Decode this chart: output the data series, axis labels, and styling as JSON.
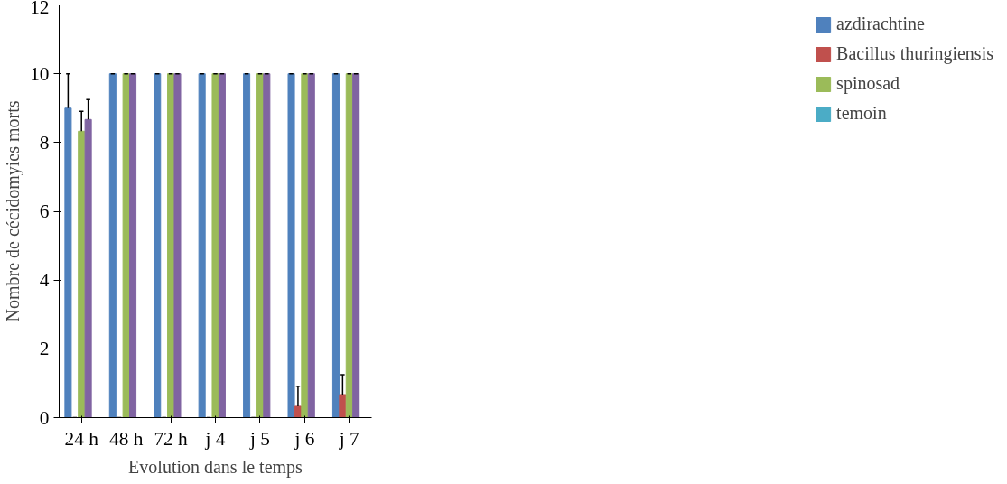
{
  "chart_data": {
    "type": "bar",
    "xlabel": "Evolution dans le temps",
    "ylabel": "Nombre de cécidomyies morts",
    "categories": [
      "24 h",
      "48 h",
      "72 h",
      "j 4",
      "j 5",
      "j 6",
      "j 7"
    ],
    "series": [
      {
        "name": "azdirachtine",
        "color": "#4f81bd",
        "values": [
          9,
          10,
          10,
          10,
          10,
          10,
          10
        ],
        "errors": [
          1,
          0,
          0,
          0,
          0,
          0,
          0
        ]
      },
      {
        "name": "Bacillus thuringiensis",
        "color": "#c0504d",
        "values": [
          0,
          0,
          0,
          0,
          0,
          0.33,
          0.67
        ],
        "errors": [
          0,
          0,
          0,
          0,
          0,
          0.58,
          0.58
        ]
      },
      {
        "name": "spinosad",
        "color": "#9bbb59",
        "values": [
          8.33,
          10,
          10,
          10,
          10,
          10,
          10
        ],
        "errors": [
          0.58,
          0,
          0,
          0,
          0,
          0,
          0
        ]
      },
      {
        "color": "#8064a2",
        "values": [
          8.67,
          10,
          10,
          10,
          10,
          10,
          10
        ],
        "errors": [
          0.58,
          0,
          0,
          0,
          0,
          0,
          0
        ]
      },
      {
        "name": "temoin",
        "color": "#4bacc6",
        "values": [
          0,
          0,
          0,
          0,
          0,
          0,
          0
        ]
      }
    ],
    "ylim": [
      0,
      12
    ],
    "yticks": [
      0,
      2,
      4,
      6,
      8,
      10,
      12
    ],
    "grid": false,
    "legend": "right"
  }
}
